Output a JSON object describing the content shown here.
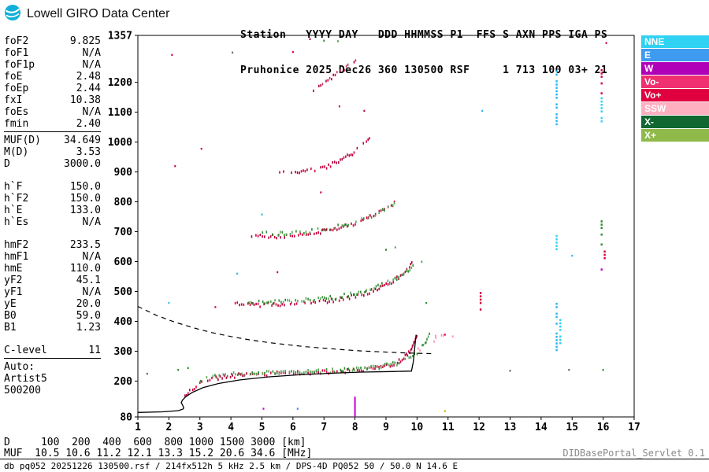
{
  "header": {
    "logo_text": "Lowell GIRO Data Center",
    "station_line1": "Station   YYYY DAY   DDD HHMMSS P1  FFS S AXN PPS IGA PS",
    "station_line2": "Pruhonice 2025 Dec26 360 130500 RSF     1 713 100 03+ 21"
  },
  "params": {
    "groups": [
      {
        "rule_below": true,
        "rows": [
          [
            "foF2",
            "9.825"
          ],
          [
            "foF1",
            "N/A"
          ],
          [
            "foF1p",
            "N/A"
          ],
          [
            "foE",
            "2.48"
          ],
          [
            "foEp",
            "2.44"
          ],
          [
            "fxI",
            "10.38"
          ],
          [
            "foEs",
            "N/A"
          ],
          [
            "fmin",
            "2.40"
          ]
        ]
      },
      {
        "rule_below": false,
        "rows": [
          [
            "MUF(D)",
            "34.649"
          ],
          [
            "M(D)",
            "3.53"
          ],
          [
            "D",
            "3000.0"
          ]
        ]
      },
      {
        "rule_below": false,
        "rows": [
          [
            "h`F",
            "150.0"
          ],
          [
            "h`F2",
            "150.0"
          ],
          [
            "h`E",
            "133.0"
          ],
          [
            "h`Es",
            "N/A"
          ]
        ]
      },
      {
        "rule_below": false,
        "rows": [
          [
            "hmF2",
            "233.5"
          ],
          [
            "hmF1",
            "N/A"
          ],
          [
            "hmE",
            "110.0"
          ],
          [
            "yF2",
            "45.1"
          ],
          [
            "yF1",
            "N/A"
          ],
          [
            "yE",
            "20.0"
          ],
          [
            "B0",
            "59.0"
          ],
          [
            "B1",
            "1.23"
          ]
        ]
      },
      {
        "rule_below": true,
        "rows": [
          [
            "C-level",
            "11"
          ]
        ]
      },
      {
        "rule_below": false,
        "rows": [
          [
            "Auto:",
            ""
          ],
          [
            "Artist5",
            ""
          ],
          [
            "500200",
            ""
          ]
        ]
      }
    ]
  },
  "legend": {
    "items": [
      {
        "label": "NNE",
        "color": "#2fd2f2"
      },
      {
        "label": "E",
        "color": "#3f9bf0"
      },
      {
        "label": "W",
        "color": "#b000b8"
      },
      {
        "label": "Vo-",
        "color": "#f03070"
      },
      {
        "label": "Vo+",
        "color": "#e00040"
      },
      {
        "label": "SSW",
        "color": "#ffb0c0"
      },
      {
        "label": "X-",
        "color": "#106830"
      },
      {
        "label": "X+",
        "color": "#8fba4a"
      }
    ]
  },
  "chart_data": {
    "type": "scatter",
    "xlabel": "[MHz]",
    "ylabel": "[km]",
    "xlim": [
      1,
      17
    ],
    "ylim": [
      80,
      1357
    ],
    "x_ticks": [
      1,
      2,
      3,
      4,
      5,
      6,
      7,
      8,
      9,
      10,
      11,
      12,
      13,
      14,
      15,
      16,
      17
    ],
    "y_ticks": [
      80,
      200,
      300,
      400,
      500,
      600,
      700,
      800,
      900,
      1000,
      1100,
      1200,
      1357
    ],
    "profile_line": {
      "name": "true-height-profile",
      "color": "#000000",
      "points": [
        [
          1.0,
          95
        ],
        [
          1.8,
          97
        ],
        [
          2.3,
          101
        ],
        [
          2.45,
          106
        ],
        [
          2.48,
          110
        ],
        [
          2.44,
          120
        ],
        [
          2.4,
          128
        ],
        [
          2.44,
          137
        ],
        [
          2.55,
          148
        ],
        [
          2.75,
          162
        ],
        [
          3.1,
          178
        ],
        [
          3.6,
          192
        ],
        [
          4.3,
          204
        ],
        [
          5.2,
          214
        ],
        [
          6.2,
          221
        ],
        [
          7.2,
          226
        ],
        [
          8.2,
          230
        ],
        [
          9.2,
          232
        ],
        [
          9.82,
          233.5
        ],
        [
          9.88,
          265
        ],
        [
          9.93,
          315
        ],
        [
          9.97,
          355
        ]
      ]
    },
    "muf_curve": {
      "name": "transmission-curve",
      "color": "#000000",
      "dash": "6 5",
      "points": [
        [
          1,
          450
        ],
        [
          1.6,
          420
        ],
        [
          2.2,
          397
        ],
        [
          2.8,
          378
        ],
        [
          3.4,
          362
        ],
        [
          4,
          349
        ],
        [
          4.6,
          338
        ],
        [
          5.2,
          329
        ],
        [
          5.8,
          322
        ],
        [
          6.4,
          315
        ],
        [
          7,
          310
        ],
        [
          7.6,
          305
        ],
        [
          8.2,
          301
        ],
        [
          8.8,
          298
        ],
        [
          9.4,
          295
        ],
        [
          10,
          293
        ],
        [
          10.5,
          292
        ]
      ]
    },
    "traces": [
      {
        "name": "F-1hop-O",
        "colors": [
          "#d4003c",
          "#b0003c"
        ],
        "skip": 0.18,
        "points": [
          [
            2.45,
            152
          ],
          [
            2.6,
            165
          ],
          [
            2.8,
            182
          ],
          [
            3.1,
            200
          ],
          [
            3.5,
            213
          ],
          [
            4.1,
            222
          ],
          [
            5,
            228
          ],
          [
            6,
            231
          ],
          [
            7,
            234
          ],
          [
            7.8,
            238
          ],
          [
            8.5,
            245
          ],
          [
            9,
            255
          ],
          [
            9.35,
            268
          ],
          [
            9.6,
            285
          ],
          [
            9.78,
            310
          ],
          [
            9.9,
            340
          ],
          [
            10.0,
            362
          ]
        ]
      },
      {
        "name": "F-1hop-X",
        "colors": [
          "#2e8b2e",
          "#57a557"
        ],
        "skip": 0.22,
        "points": [
          [
            3.0,
            205
          ],
          [
            3.4,
            218
          ],
          [
            4,
            226
          ],
          [
            5,
            231
          ],
          [
            6,
            234
          ],
          [
            7,
            237
          ],
          [
            7.9,
            242
          ],
          [
            8.7,
            250
          ],
          [
            9.2,
            260
          ],
          [
            9.6,
            272
          ],
          [
            9.9,
            290
          ],
          [
            10.15,
            318
          ],
          [
            10.3,
            345
          ],
          [
            10.42,
            365
          ]
        ]
      },
      {
        "name": "F-1hop-tail-pink",
        "colors": [
          "#ff8fae",
          "#ff8fae"
        ],
        "skip": 0.55,
        "points": [
          [
            9.9,
            300
          ],
          [
            10.3,
            330
          ],
          [
            10.7,
            352
          ],
          [
            11.1,
            356
          ]
        ]
      },
      {
        "name": "F-2hop-O",
        "colors": [
          "#d4003c",
          "#b0003c"
        ],
        "skip": 0.18,
        "points": [
          [
            4.05,
            462
          ],
          [
            4.6,
            458
          ],
          [
            5.3,
            460
          ],
          [
            6.1,
            464
          ],
          [
            6.9,
            470
          ],
          [
            7.6,
            480
          ],
          [
            8.2,
            494
          ],
          [
            8.7,
            512
          ],
          [
            9.1,
            532
          ],
          [
            9.45,
            556
          ],
          [
            9.7,
            580
          ],
          [
            9.85,
            600
          ]
        ]
      },
      {
        "name": "F-2hop-X",
        "colors": [
          "#2e8b2e",
          "#57a557"
        ],
        "skip": 0.3,
        "points": [
          [
            4.5,
            470
          ],
          [
            5.2,
            468
          ],
          [
            6,
            472
          ],
          [
            6.8,
            478
          ],
          [
            7.5,
            487
          ],
          [
            8.1,
            500
          ],
          [
            8.6,
            516
          ],
          [
            9.1,
            536
          ],
          [
            9.5,
            560
          ],
          [
            9.8,
            585
          ],
          [
            10.05,
            605
          ]
        ]
      },
      {
        "name": "F-3hop-O",
        "colors": [
          "#d4003c",
          "#b0003c"
        ],
        "skip": 0.2,
        "points": [
          [
            4.65,
            692
          ],
          [
            5.2,
            688
          ],
          [
            5.9,
            691
          ],
          [
            6.6,
            699
          ],
          [
            7.2,
            710
          ],
          [
            7.8,
            726
          ],
          [
            8.3,
            744
          ],
          [
            8.7,
            763
          ],
          [
            9.05,
            785
          ],
          [
            9.3,
            805
          ]
        ]
      },
      {
        "name": "F-3hop-X",
        "colors": [
          "#2e8b2e",
          "#57a557"
        ],
        "skip": 0.38,
        "points": [
          [
            5.0,
            700
          ],
          [
            5.7,
            697
          ],
          [
            6.4,
            703
          ],
          [
            7.1,
            714
          ],
          [
            7.7,
            728
          ],
          [
            8.2,
            744
          ],
          [
            8.7,
            764
          ],
          [
            9.1,
            788
          ],
          [
            9.4,
            810
          ]
        ]
      },
      {
        "name": "F-4hop-O",
        "colors": [
          "#d4003c",
          "#b0003c"
        ],
        "skip": 0.25,
        "points": [
          [
            5.55,
            908
          ],
          [
            6.0,
            903
          ],
          [
            6.5,
            908
          ],
          [
            7.0,
            920
          ],
          [
            7.45,
            938
          ],
          [
            7.85,
            962
          ],
          [
            8.2,
            990
          ],
          [
            8.5,
            1020
          ]
        ]
      },
      {
        "name": "F-5hop-O",
        "colors": [
          "#c04060",
          "#b0003c"
        ],
        "skip": 0.45,
        "points": [
          [
            6.35,
            1165
          ],
          [
            6.7,
            1185
          ],
          [
            7.05,
            1208
          ],
          [
            7.4,
            1232
          ],
          [
            7.75,
            1258
          ],
          [
            8.05,
            1280
          ]
        ]
      }
    ],
    "rfi_strips": [
      {
        "name": "rfi-8.0-w",
        "freq": 8.0,
        "color": "#cc00cc",
        "solid": true,
        "from": 80,
        "to": 148
      },
      {
        "name": "rfi-14.5-a",
        "freq": 14.5,
        "color": "#29b6f6",
        "from": 300,
        "to": 462
      },
      {
        "name": "rfi-14.5-b",
        "freq": 14.5,
        "color": "#29b6f6",
        "from": 1060,
        "to": 1240
      },
      {
        "name": "rfi-14.5-c",
        "freq": 14.5,
        "color": "#2fd2f2",
        "from": 640,
        "to": 700
      },
      {
        "name": "rfi-14.6",
        "freq": 14.62,
        "color": "#2fd2f2",
        "from": 330,
        "to": 430
      },
      {
        "name": "rfi-16-a",
        "freq": 15.95,
        "color": "#d4003c",
        "from": 1160,
        "to": 1255
      },
      {
        "name": "rfi-16-b",
        "freq": 15.95,
        "color": "#2fd2f2",
        "from": 1072,
        "to": 1150
      },
      {
        "name": "rfi-16-c",
        "freq": 15.95,
        "color": "#2e8b2e",
        "from": 650,
        "to": 738
      },
      {
        "name": "rfi-16-d",
        "freq": 16.05,
        "color": "#d4003c",
        "from": 596,
        "to": 648
      },
      {
        "name": "rfi-16-e",
        "freq": 15.95,
        "color": "#cc00cc",
        "from": 556,
        "to": 588
      },
      {
        "name": "rfi-12",
        "freq": 12.05,
        "color": "#d4003c",
        "from": 432,
        "to": 498
      }
    ],
    "noise_points": [
      [
        1.3,
        225,
        "#666666"
      ],
      [
        2.1,
        1292,
        "#d4003c"
      ],
      [
        2.2,
        920,
        "#d4003c"
      ],
      [
        2.3,
        238,
        "#2e8b2e"
      ],
      [
        2.62,
        244,
        "#2e8b2e"
      ],
      [
        3.05,
        978,
        "#d4003c"
      ],
      [
        3.5,
        448,
        "#d4003c"
      ],
      [
        2.0,
        462,
        "#29b6f6"
      ],
      [
        4.05,
        1300,
        "#666666"
      ],
      [
        4.2,
        560,
        "#29b6f6"
      ],
      [
        5.0,
        758,
        "#29b6f6"
      ],
      [
        5.05,
        108,
        "#cc00cc"
      ],
      [
        5.5,
        565,
        "#d4003c"
      ],
      [
        6.0,
        1302,
        "#d4003c"
      ],
      [
        6.15,
        108,
        "#3b82f6"
      ],
      [
        6.55,
        1345,
        "#b0003c"
      ],
      [
        6.9,
        832,
        "#d4003c"
      ],
      [
        7.0,
        1340,
        "#2e8b2e"
      ],
      [
        7.45,
        1338,
        "#57a557"
      ],
      [
        7.5,
        1120,
        "#d4003c"
      ],
      [
        8.3,
        1105,
        "#b0003c"
      ],
      [
        9.0,
        640,
        "#2e8b2e"
      ],
      [
        9.3,
        648,
        "#57a557"
      ],
      [
        10.15,
        600,
        "#57a557"
      ],
      [
        10.3,
        462,
        "#2e8b2e"
      ],
      [
        10.6,
        352,
        "#ff8fae"
      ],
      [
        10.9,
        356,
        "#d4003c"
      ],
      [
        11.15,
        350,
        "#ff8fae"
      ],
      [
        10.9,
        100,
        "#c8b400"
      ],
      [
        12.1,
        1105,
        "#29b6f6"
      ],
      [
        13.0,
        235,
        "#666666"
      ],
      [
        14.9,
        238,
        "#666666"
      ],
      [
        15.0,
        620,
        "#29b6f6"
      ],
      [
        16.1,
        1332,
        "#d4003c"
      ],
      [
        16.0,
        238,
        "#2e8b2e"
      ]
    ]
  },
  "footer": {
    "d_row": {
      "label": "D",
      "values": [
        "100",
        "200",
        "400",
        "600",
        "800",
        "1000",
        "1500",
        "3000"
      ],
      "unit": "[km]"
    },
    "muf_row": {
      "label": "MUF",
      "values": [
        "10.5",
        "10.6",
        "11.2",
        "12.1",
        "13.3",
        "15.2",
        "20.6",
        "34.6"
      ],
      "unit": "[MHz]"
    },
    "db_line": "db pq052 20251226 130500.rsf / 214fx512h 5 kHz 2.5 km / DPS-4D PQ052 50 / 50.0 N 14.6 E",
    "servlet": "DIDBasePortal_Servlet 0.1"
  }
}
